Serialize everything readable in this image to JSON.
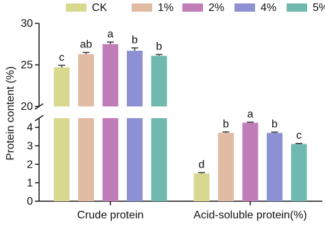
{
  "chart_data": {
    "type": "bar",
    "y_axis_label": "Protein content (%)",
    "categories": [
      "Crude protein",
      "Acid-soluble protein(%)"
    ],
    "series": [
      {
        "name": "CK",
        "color": "#d8d98e",
        "values": [
          24.7,
          1.5
        ],
        "errors": [
          0.25,
          0.05
        ],
        "letters": [
          "c",
          "d"
        ]
      },
      {
        "name": "1%",
        "color": "#e2bba3",
        "values": [
          26.3,
          3.7
        ],
        "errors": [
          0.2,
          0.05
        ],
        "letters": [
          "ab",
          "b"
        ]
      },
      {
        "name": "2%",
        "color": "#c07db8",
        "values": [
          27.5,
          4.25
        ],
        "errors": [
          0.25,
          0.03
        ],
        "letters": [
          "a",
          "a"
        ]
      },
      {
        "name": "4%",
        "color": "#8d90d2",
        "values": [
          26.7,
          3.7
        ],
        "errors": [
          0.35,
          0.04
        ],
        "letters": [
          "b",
          "b"
        ]
      },
      {
        "name": "5%",
        "color": "#70b9b1",
        "values": [
          26.1,
          3.1
        ],
        "errors": [
          0.15,
          0.03
        ],
        "letters": [
          "b",
          "c"
        ]
      }
    ],
    "ylim_segments": [
      [
        0,
        4.5
      ],
      [
        20,
        30
      ]
    ],
    "yticks": [
      0,
      1,
      2,
      3,
      4,
      20,
      25,
      30
    ],
    "legend": "top",
    "grid": false
  }
}
